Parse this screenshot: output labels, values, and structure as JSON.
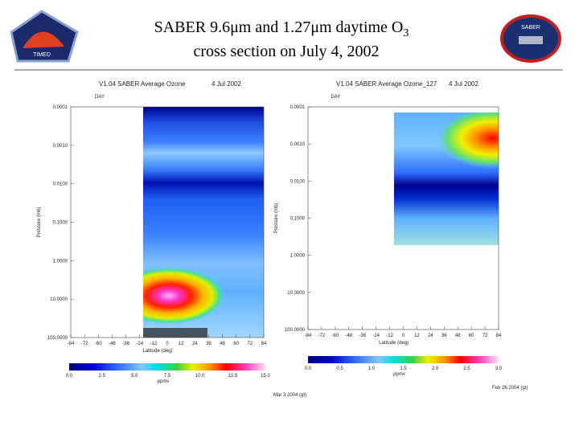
{
  "header": {
    "title_line1": "SABER 9.6μm and 1.27μm daytime O",
    "title_sub": "3",
    "title_line2": "cross section on July 4, 2002",
    "logo_left": "TIMED",
    "logo_right": "SABER"
  },
  "panels": [
    {
      "title": "V1.04 SABER Average Ozone",
      "date": "4 Jul 2002",
      "top_label": "DAY",
      "ylabel": "Pressure (mb)",
      "xlabel": "Latitude (deg)",
      "unit": "ppmv",
      "footer": "Mar 3 2004 (gt)",
      "yticks": [
        "0.0001",
        "0.0010",
        "0.0100",
        "0.1000",
        "1.0000",
        "10.0000",
        "100.0000"
      ],
      "xticks": [
        "-84",
        "-72",
        "-60",
        "-48",
        "-36",
        "-24",
        "-12",
        "0",
        "12",
        "24",
        "36",
        "48",
        "60",
        "72",
        "84"
      ],
      "cbticks": [
        "0.0",
        "2.5",
        "5.0",
        "7.5",
        "10.0",
        "12.5",
        "15.0"
      ]
    },
    {
      "title": "V1.04 SABER Average Ozone_127",
      "date": "4 Jul 2002",
      "top_label": "DAY",
      "ylabel": "Pressure (mb)",
      "xlabel": "Latitude (deg)",
      "unit": "ppmv",
      "footer": "Feb 26 2004 (gt)",
      "yticks": [
        "0.0001",
        "0.0010",
        "0.0100",
        "0.1000",
        "1.0000",
        "10.0000",
        "100.0000"
      ],
      "xticks": [
        "-84",
        "-72",
        "-60",
        "-48",
        "-36",
        "-24",
        "-12",
        "0",
        "12",
        "24",
        "36",
        "48",
        "60",
        "72",
        "84"
      ],
      "cbticks": [
        "0.0",
        "0.5",
        "1.0",
        "1.5",
        "2.0",
        "2.5",
        "3.0"
      ]
    }
  ]
}
